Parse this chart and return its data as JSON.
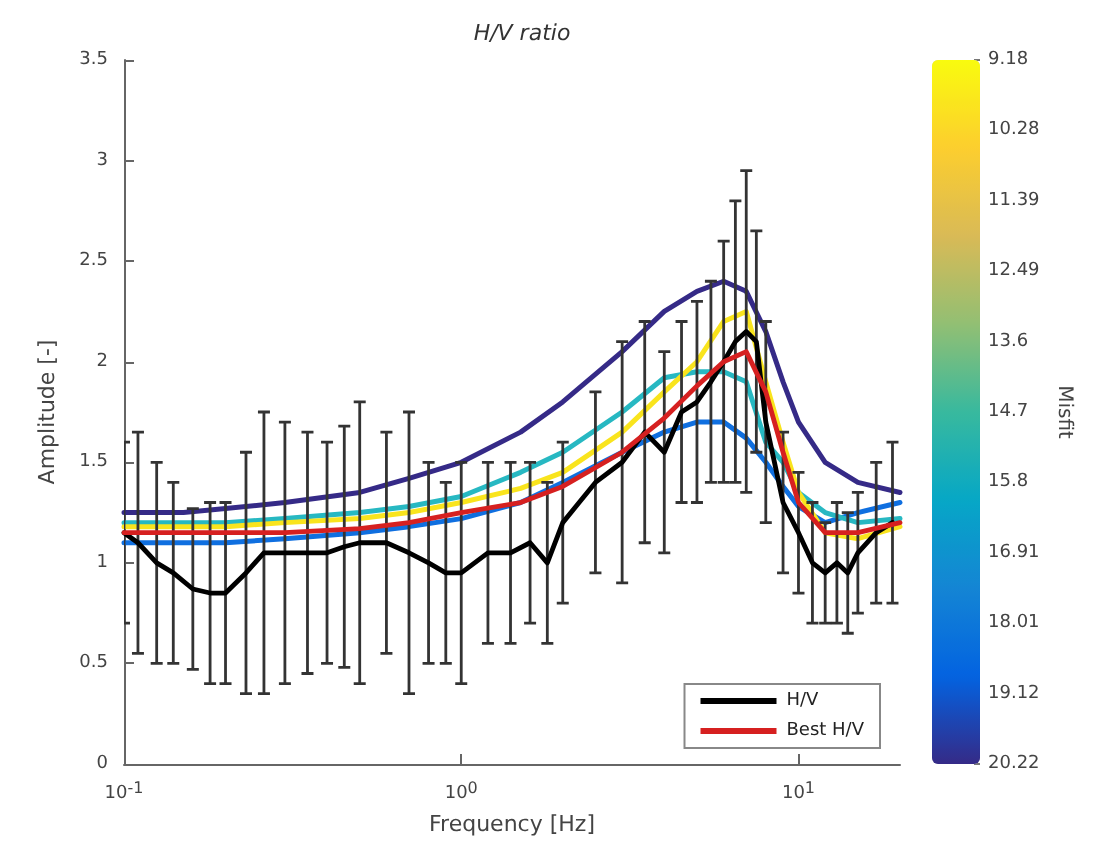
{
  "chart_data": {
    "type": "line",
    "title": "H/V ratio",
    "xlabel": "Frequency [Hz]",
    "ylabel": "Amplitude [-]",
    "clabel": "Misfit",
    "log": "x",
    "xlim": [
      0.1,
      20
    ],
    "xticks": [
      {
        "value": 0.1,
        "label": "10$^{-1}$"
      },
      {
        "value": 1,
        "label": "10$^{0}$"
      },
      {
        "value": 10,
        "label": "10$^{1}$"
      }
    ],
    "ylim": [
      0,
      3.5
    ],
    "yticks": [
      0,
      0.5,
      1,
      1.5,
      2,
      2.5,
      3,
      3.5
    ],
    "clim": [
      9.18,
      20.22
    ],
    "cticks": [
      9.18,
      10.28,
      11.39,
      12.49,
      13.6,
      14.7,
      15.8,
      16.91,
      18.01,
      19.12,
      20.22
    ],
    "grid": false,
    "legend": "bottom right",
    "marker": "none",
    "line_style": "solid",
    "series": [
      {
        "color": "#352a87",
        "x": [
          0.1,
          0.15,
          0.2,
          0.3,
          0.5,
          0.7,
          1,
          1.5,
          2,
          3,
          4,
          5,
          6,
          7,
          8,
          9,
          10,
          12,
          15,
          20
        ],
        "values": [
          1.25,
          1.25,
          1.27,
          1.3,
          1.35,
          1.42,
          1.5,
          1.65,
          1.8,
          2.05,
          2.25,
          2.35,
          2.4,
          2.35,
          2.15,
          1.9,
          1.7,
          1.5,
          1.4,
          1.35
        ]
      },
      {
        "color": "#0f6fe0",
        "x": [
          0.1,
          0.15,
          0.2,
          0.3,
          0.5,
          0.7,
          1,
          1.5,
          2,
          3,
          4,
          5,
          6,
          7,
          8,
          9,
          10,
          12,
          15,
          20
        ],
        "values": [
          1.1,
          1.1,
          1.1,
          1.12,
          1.15,
          1.18,
          1.22,
          1.3,
          1.4,
          1.55,
          1.65,
          1.7,
          1.7,
          1.62,
          1.5,
          1.38,
          1.28,
          1.2,
          1.25,
          1.3
        ]
      },
      {
        "color": "#27b8c2",
        "x": [
          0.1,
          0.15,
          0.2,
          0.3,
          0.5,
          0.7,
          1,
          1.5,
          2,
          3,
          4,
          5,
          6,
          7,
          8,
          9,
          10,
          12,
          15,
          20
        ],
        "values": [
          1.2,
          1.2,
          1.2,
          1.22,
          1.25,
          1.28,
          1.33,
          1.45,
          1.55,
          1.75,
          1.92,
          1.95,
          1.95,
          1.9,
          1.6,
          1.5,
          1.35,
          1.25,
          1.2,
          1.22
        ]
      },
      {
        "color": "#f9e41d",
        "x": [
          0.1,
          0.15,
          0.2,
          0.3,
          0.5,
          0.7,
          1,
          1.5,
          2,
          3,
          4,
          5,
          6,
          7,
          8,
          9,
          10,
          12,
          15,
          20
        ],
        "values": [
          1.18,
          1.18,
          1.18,
          1.2,
          1.22,
          1.25,
          1.3,
          1.37,
          1.45,
          1.65,
          1.85,
          2.0,
          2.2,
          2.25,
          1.9,
          1.6,
          1.35,
          1.15,
          1.12,
          1.18
        ]
      },
      {
        "name": "H/V",
        "color": "#000000",
        "x": [
          0.1,
          0.11,
          0.125,
          0.14,
          0.16,
          0.18,
          0.2,
          0.23,
          0.26,
          0.3,
          0.35,
          0.4,
          0.45,
          0.5,
          0.6,
          0.7,
          0.8,
          0.9,
          1,
          1.2,
          1.4,
          1.6,
          1.8,
          2,
          2.5,
          3,
          3.5,
          4,
          4.5,
          5,
          5.5,
          6,
          6.5,
          7,
          7.5,
          8,
          9,
          10,
          11,
          12,
          13,
          14,
          15,
          17,
          19
        ],
        "values": [
          1.15,
          1.1,
          1.0,
          0.95,
          0.87,
          0.85,
          0.85,
          0.95,
          1.05,
          1.05,
          1.05,
          1.05,
          1.08,
          1.1,
          1.1,
          1.05,
          1.0,
          0.95,
          0.95,
          1.05,
          1.05,
          1.1,
          1.0,
          1.2,
          1.4,
          1.5,
          1.65,
          1.55,
          1.75,
          1.8,
          1.9,
          2.0,
          2.1,
          2.15,
          2.1,
          1.7,
          1.3,
          1.15,
          1.0,
          0.95,
          1.0,
          0.95,
          1.05,
          1.15,
          1.2
        ],
        "errors": [
          0.45,
          0.55,
          0.5,
          0.45,
          0.4,
          0.45,
          0.45,
          0.6,
          0.7,
          0.65,
          0.6,
          0.55,
          0.6,
          0.7,
          0.55,
          0.7,
          0.5,
          0.45,
          0.55,
          0.45,
          0.45,
          0.4,
          0.4,
          0.4,
          0.45,
          0.6,
          0.55,
          0.5,
          0.45,
          0.5,
          0.5,
          0.6,
          0.7,
          0.8,
          0.55,
          0.5,
          0.35,
          0.3,
          0.3,
          0.25,
          0.3,
          0.3,
          0.3,
          0.35,
          0.4
        ]
      },
      {
        "name": "Best H/V",
        "color": "#d62020",
        "x": [
          0.1,
          0.15,
          0.2,
          0.3,
          0.5,
          0.7,
          1,
          1.5,
          2,
          3,
          4,
          5,
          6,
          7,
          8,
          9,
          10,
          12,
          15,
          20
        ],
        "values": [
          1.15,
          1.15,
          1.15,
          1.15,
          1.17,
          1.2,
          1.25,
          1.3,
          1.38,
          1.55,
          1.72,
          1.88,
          2.0,
          2.05,
          1.85,
          1.55,
          1.3,
          1.15,
          1.15,
          1.2
        ]
      }
    ]
  }
}
